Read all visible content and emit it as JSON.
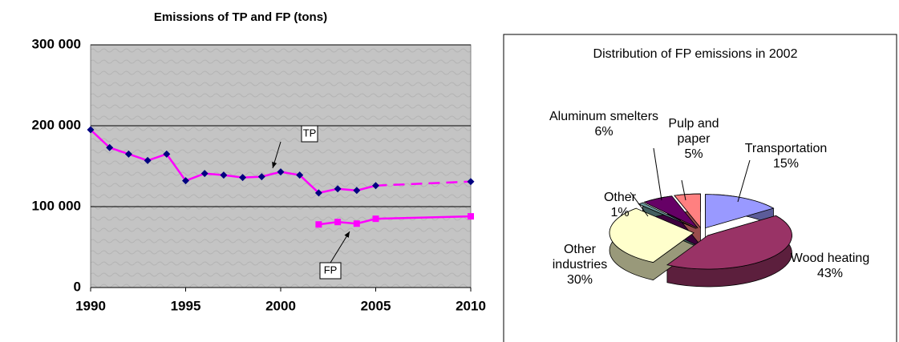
{
  "chart_data": [
    {
      "type": "line",
      "title": "Emissions of TP and FP (tons)",
      "xlim": [
        1990,
        2010
      ],
      "xticks": [
        1990,
        1995,
        2000,
        2005,
        2010
      ],
      "ylim": [
        0,
        300000
      ],
      "yticks": [
        0,
        {
          "value": 100000,
          "label": "100 000"
        },
        {
          "value": 200000,
          "label": "200 000"
        },
        {
          "value": 300000,
          "label": "300 000"
        }
      ],
      "grid": true,
      "series": [
        {
          "name": "TP",
          "color": "#ff00ff",
          "marker": "diamond",
          "marker_color": "#000080",
          "dash_from_x": 2005,
          "x": [
            1990,
            1991,
            1992,
            1993,
            1994,
            1995,
            1996,
            1997,
            1998,
            1999,
            2000,
            2001,
            2002,
            2003,
            2004,
            2005,
            2010
          ],
          "values": [
            195000,
            173000,
            165000,
            157000,
            165000,
            132000,
            141000,
            139000,
            136000,
            137000,
            143000,
            139000,
            117000,
            122000,
            120000,
            126000,
            131000
          ]
        },
        {
          "name": "FP",
          "color": "#ff00ff",
          "marker": "square",
          "marker_color": "#ff00ff",
          "x": [
            2002,
            2003,
            2004,
            2005,
            2010
          ],
          "values": [
            78000,
            81000,
            79000,
            85000,
            88000
          ]
        }
      ]
    },
    {
      "type": "pie",
      "title": "Distribution of FP emissions in 2002",
      "categories": [
        "Transportation",
        "Wood heating",
        "Other industries",
        "Other",
        "Aluminum smelters",
        "Pulp and paper"
      ],
      "values": [
        15,
        43,
        30,
        1,
        6,
        5
      ],
      "value_labels": [
        "15%",
        "43%",
        "30%",
        "1%",
        "6%",
        "5%"
      ],
      "colors": [
        "#9999ff",
        "#993366",
        "#ffffcc",
        "#6f9f9f",
        "#660066",
        "#ff8080"
      ]
    }
  ]
}
